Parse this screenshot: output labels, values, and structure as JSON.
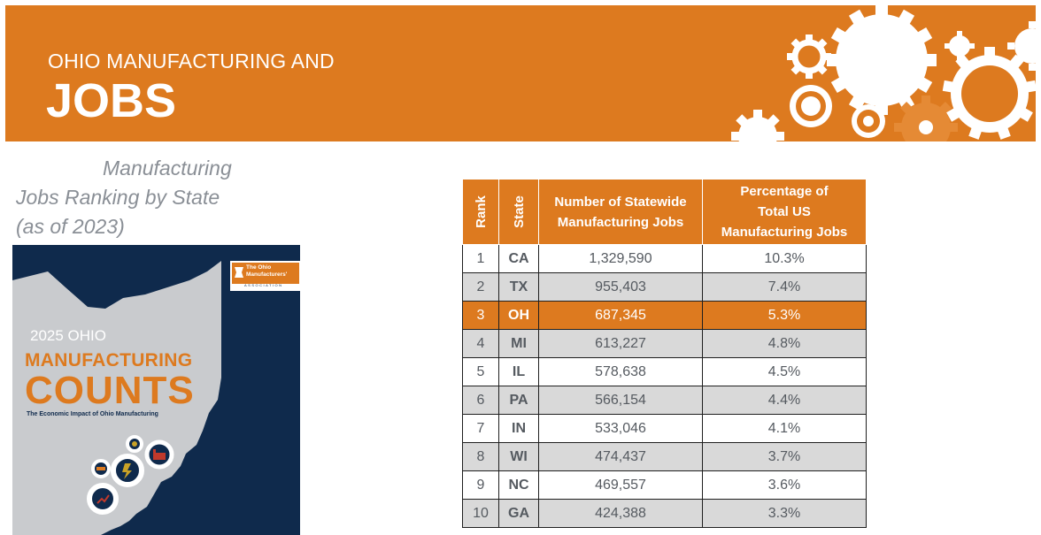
{
  "banner": {
    "subtitle": "OHIO MANUFACTURING AND",
    "title": "JOBS"
  },
  "subtitle_lines": [
    "Manufacturing",
    "Jobs Ranking by State",
    "(as of 2023)"
  ],
  "cover": {
    "year_line": "2025 OHIO",
    "title_line1": "MANUFACTURING",
    "title_line2": "COUNTS",
    "tagline": "The Economic Impact of Ohio Manufacturing",
    "logo_line1": "The Ohio",
    "logo_line2": "Manufacturers'",
    "logo_line3": "ASSOCIATION"
  },
  "table": {
    "headers": {
      "rank": "Rank",
      "state": "State",
      "jobs_line1": "Number of Statewide",
      "jobs_line2": "Manufacturing Jobs",
      "pct_line1": "Percentage of",
      "pct_line2": "Total US",
      "pct_line3": "Manufacturing Jobs"
    },
    "rows": [
      {
        "rank": "1",
        "state": "CA",
        "jobs": "1,329,590",
        "pct": "10.3%"
      },
      {
        "rank": "2",
        "state": "TX",
        "jobs": "955,403",
        "pct": "7.4%"
      },
      {
        "rank": "3",
        "state": "OH",
        "jobs": "687,345",
        "pct": "5.3%"
      },
      {
        "rank": "4",
        "state": "MI",
        "jobs": "613,227",
        "pct": "4.8%"
      },
      {
        "rank": "5",
        "state": "IL",
        "jobs": "578,638",
        "pct": "4.5%"
      },
      {
        "rank": "6",
        "state": "PA",
        "jobs": "566,154",
        "pct": "4.4%"
      },
      {
        "rank": "7",
        "state": "IN",
        "jobs": "533,046",
        "pct": "4.1%"
      },
      {
        "rank": "8",
        "state": "WI",
        "jobs": "474,437",
        "pct": "3.7%"
      },
      {
        "rank": "9",
        "state": "NC",
        "jobs": "469,557",
        "pct": "3.6%"
      },
      {
        "rank": "10",
        "state": "GA",
        "jobs": "424,388",
        "pct": "3.3%"
      }
    ]
  },
  "colors": {
    "accent": "#dd7a1f",
    "navy": "#0f2a4c",
    "alt_row": "#d9d9d9",
    "subtitle_gray": "#8a8f96"
  }
}
